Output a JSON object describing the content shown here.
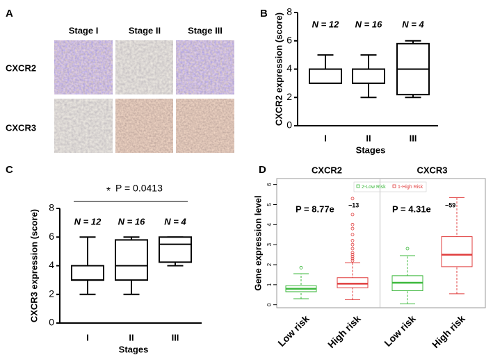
{
  "panel_labels": [
    "A",
    "B",
    "C",
    "D"
  ],
  "panel_a": {
    "columns": [
      "Stage I",
      "Stage II",
      "Stage III"
    ],
    "rows": [
      "CXCR2",
      "CXCR3"
    ]
  },
  "chart_data": [
    {
      "type": "box",
      "ylabel": "CXCR2 expression (score)",
      "xlabel": "Stages",
      "categories": [
        "I",
        "II",
        "III"
      ],
      "annotations": [
        "N = 12",
        "N = 16",
        "N = 4"
      ],
      "ylim": [
        0,
        8
      ],
      "yticks": [
        0,
        2,
        4,
        6,
        8
      ],
      "color": "#000000",
      "boxes": [
        {
          "min": 3,
          "q1": 3,
          "median": 3,
          "q3": 4,
          "max": 5
        },
        {
          "min": 2,
          "q1": 3,
          "median": 3,
          "q3": 4,
          "max": 5
        },
        {
          "min": 2,
          "q1": 2.2,
          "median": 4,
          "q3": 5.8,
          "max": 6
        }
      ]
    },
    {
      "type": "box",
      "ylabel": "CXCR3 expression (score)",
      "xlabel": "Stages",
      "categories": [
        "I",
        "II",
        "III"
      ],
      "annotations": [
        "N = 12",
        "N = 16",
        "N = 4"
      ],
      "significance": "*",
      "p_label": "P = 0.0413",
      "ylim": [
        0,
        8
      ],
      "yticks": [
        0,
        2,
        4,
        6,
        8
      ],
      "color": "#000000",
      "boxes": [
        {
          "min": 2,
          "q1": 3,
          "median": 3,
          "q3": 4,
          "max": 6
        },
        {
          "min": 2,
          "q1": 3,
          "median": 4,
          "q3": 5.8,
          "max": 6
        },
        {
          "min": 4,
          "q1": 4.25,
          "median": 5.5,
          "q3": 6,
          "max": 6
        }
      ]
    },
    {
      "type": "box",
      "ylabel": "Gene expression level",
      "groups": [
        "CXCR2",
        "CXCR3"
      ],
      "p_values": [
        {
          "base": "P = 8.77e",
          "exponent": "−13"
        },
        {
          "base": "P = 4.31e",
          "exponent": "−59"
        }
      ],
      "categories": [
        "Low risk",
        "High risk",
        "Low risk",
        "High risk"
      ],
      "legend": [
        {
          "name": "2-Low Risk",
          "color": "#3cb83c"
        },
        {
          "name": "1-High Risk",
          "color": "#e03c3c"
        }
      ],
      "ylim": [
        -0.15,
        6.3
      ],
      "yticks": [
        0,
        1,
        2,
        3,
        4,
        5,
        6
      ],
      "boxes": [
        {
          "min": 0.3,
          "q1": 0.65,
          "median": 0.8,
          "q3": 0.95,
          "max": 1.55,
          "outliers": [
            1.85
          ],
          "color": "#3cb83c"
        },
        {
          "min": 0.25,
          "q1": 0.85,
          "median": 1.05,
          "q3": 1.35,
          "max": 2.1,
          "outliers": [
            2.2,
            2.3,
            2.4,
            2.5,
            2.6,
            2.8,
            3.0,
            3.2,
            3.5,
            3.8,
            4.0,
            4.5,
            5.3
          ],
          "color": "#e03c3c"
        },
        {
          "min": 0.05,
          "q1": 0.7,
          "median": 1.1,
          "q3": 1.45,
          "max": 2.45,
          "outliers": [
            2.8
          ],
          "color": "#3cb83c"
        },
        {
          "min": 0.55,
          "q1": 1.9,
          "median": 2.5,
          "q3": 3.4,
          "max": 5.35,
          "color": "#e03c3c"
        }
      ]
    }
  ]
}
